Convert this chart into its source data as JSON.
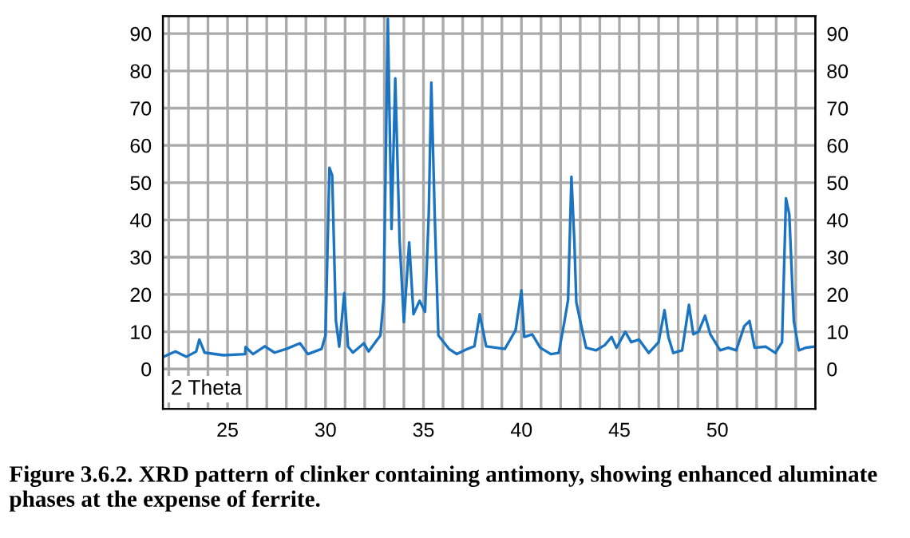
{
  "chart_data": {
    "type": "line",
    "xlabel": "2 Theta",
    "annotations": [
      "Figure 3.6.2. XRD pattern of clinker containing antimony, showing enhanced aluminate phases at the expense of ferrite."
    ],
    "xlim": [
      21.7,
      55.0
    ],
    "ylim": [
      -10.7,
      94.7
    ],
    "y2lim": [
      -10.7,
      94.7
    ],
    "xticks": [
      {
        "value": 22,
        "label": null
      },
      {
        "value": 23,
        "label": null
      },
      {
        "value": 24,
        "label": null
      },
      25,
      {
        "value": 26,
        "label": null
      },
      {
        "value": 27,
        "label": null
      },
      {
        "value": 28,
        "label": null
      },
      {
        "value": 29,
        "label": null
      },
      30,
      {
        "value": 31,
        "label": null
      },
      {
        "value": 32,
        "label": null
      },
      {
        "value": 33,
        "label": null
      },
      {
        "value": 34,
        "label": null
      },
      35,
      {
        "value": 36,
        "label": null
      },
      {
        "value": 37,
        "label": null
      },
      {
        "value": 38,
        "label": null
      },
      {
        "value": 39,
        "label": null
      },
      40,
      {
        "value": 41,
        "label": null
      },
      {
        "value": 42,
        "label": null
      },
      {
        "value": 43,
        "label": null
      },
      {
        "value": 44,
        "label": null
      },
      45,
      {
        "value": 46,
        "label": null
      },
      {
        "value": 47,
        "label": null
      },
      {
        "value": 48,
        "label": null
      },
      {
        "value": 49,
        "label": null
      },
      50,
      {
        "value": 51,
        "label": null
      },
      {
        "value": 52,
        "label": null
      },
      {
        "value": 53,
        "label": null
      },
      {
        "value": 54,
        "label": null
      }
    ],
    "yticks": [
      0,
      10,
      20,
      30,
      40,
      50,
      60,
      70,
      80,
      90
    ],
    "y2ticks": [
      0,
      10,
      20,
      30,
      40,
      50,
      60,
      70,
      80,
      90
    ],
    "grid": true,
    "marker": "none",
    "line_style": "solid",
    "legend": false,
    "series": [
      {
        "color": "#1a74c2",
        "x": [
          21.75,
          22.34,
          22.9,
          23.4,
          23.56,
          23.83,
          24.8,
          25.9,
          25.92,
          26.3,
          26.9,
          27.4,
          28.0,
          28.7,
          29.1,
          29.8,
          30.0,
          30.2,
          30.34,
          30.53,
          30.7,
          30.96,
          31.15,
          31.4,
          31.96,
          32.2,
          32.8,
          32.97,
          33.18,
          33.37,
          33.56,
          33.78,
          34.0,
          34.27,
          34.49,
          34.8,
          35.08,
          35.27,
          35.4,
          35.57,
          35.76,
          36.3,
          36.7,
          37.25,
          37.6,
          37.87,
          38.2,
          39.15,
          39.7,
          40.0,
          40.14,
          40.55,
          40.96,
          41.5,
          41.9,
          42.2,
          42.38,
          42.55,
          42.7,
          42.8,
          43.0,
          43.3,
          43.8,
          44.25,
          44.6,
          44.85,
          45.3,
          45.6,
          46.0,
          46.5,
          47.0,
          47.3,
          47.5,
          47.75,
          48.2,
          48.55,
          48.77,
          49.04,
          49.37,
          49.64,
          50.14,
          50.55,
          50.96,
          51.37,
          51.64,
          51.9,
          52.47,
          52.96,
          53.3,
          53.5,
          53.67,
          53.9,
          54.16,
          54.5,
          54.93
        ],
        "values": [
          3.3,
          4.7,
          3.3,
          4.7,
          7.9,
          4.4,
          3.7,
          4,
          5.9,
          4,
          6.1,
          4.4,
          5.4,
          6.9,
          4,
          5.4,
          9,
          54,
          52,
          13,
          6,
          20.4,
          6,
          4.4,
          6.9,
          4.7,
          9,
          19,
          94,
          37.6,
          78,
          34.7,
          12.6,
          34,
          14.7,
          18.3,
          15.4,
          41.9,
          76.9,
          41.9,
          9,
          5.4,
          4,
          5.4,
          6.1,
          14.7,
          6.1,
          5.4,
          10.4,
          21.1,
          8.6,
          9.3,
          5.7,
          4,
          4.3,
          12.9,
          18.6,
          51.6,
          34.4,
          17.9,
          12.9,
          5.7,
          5,
          6.4,
          8.6,
          5.7,
          10,
          7.2,
          7.9,
          4.3,
          7.2,
          15.8,
          8.6,
          4.3,
          5,
          17.2,
          9.3,
          10,
          14.3,
          9.3,
          5,
          5.7,
          5,
          11.5,
          12.9,
          5.7,
          6,
          4.3,
          7.2,
          45.8,
          41.5,
          12.9,
          5,
          5.7,
          6
        ]
      }
    ]
  }
}
